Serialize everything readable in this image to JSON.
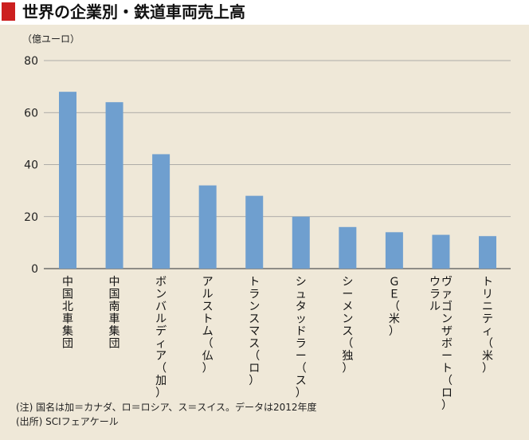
{
  "title": "世界の企業別・鉄道車両売上高",
  "colors": {
    "bar": "#6f9fcf",
    "title_marker": "#cc1f1f",
    "background": "#efe8d8"
  },
  "chart_data": {
    "type": "bar",
    "title": "世界の企業別・鉄道車両売上高",
    "ylabel": "（億ユーロ）",
    "xlabel": "",
    "ylim": [
      0,
      80
    ],
    "yticks": [
      0,
      20,
      40,
      60,
      80
    ],
    "grid": true,
    "categories": [
      "中国北車集団",
      "中国南車集団",
      "ボンバルディア（加）",
      "アルストム（仏）",
      "トランスマス（ロ）",
      "シュタッドラー（ス）",
      "シーメンス（独）",
      "ＧＥ（米）",
      "ウラルヴァゴンザボート（ロ）",
      "トリニティ（米）"
    ],
    "category_lines": [
      [
        "中国北車集団"
      ],
      [
        "中国南車集団"
      ],
      [
        "ボンバルディア（加）"
      ],
      [
        "アルストム（仏）"
      ],
      [
        "トランスマス（ロ）"
      ],
      [
        "シュタッドラー（ス）"
      ],
      [
        "シーメンス（独）"
      ],
      [
        "ＧＥ（米）"
      ],
      [
        "ヴァゴンザボート（ロ）",
        "ウラル"
      ],
      [
        "トリニティ（米）"
      ]
    ],
    "values": [
      68,
      64,
      44,
      32,
      28,
      20,
      16,
      14,
      13,
      12.5
    ]
  },
  "notes": {
    "note": "(注) 国名は加＝カナダ、ロ＝ロシア、ス＝スイス。データは2012年度",
    "source": "(出所) SCIフェアケール"
  }
}
